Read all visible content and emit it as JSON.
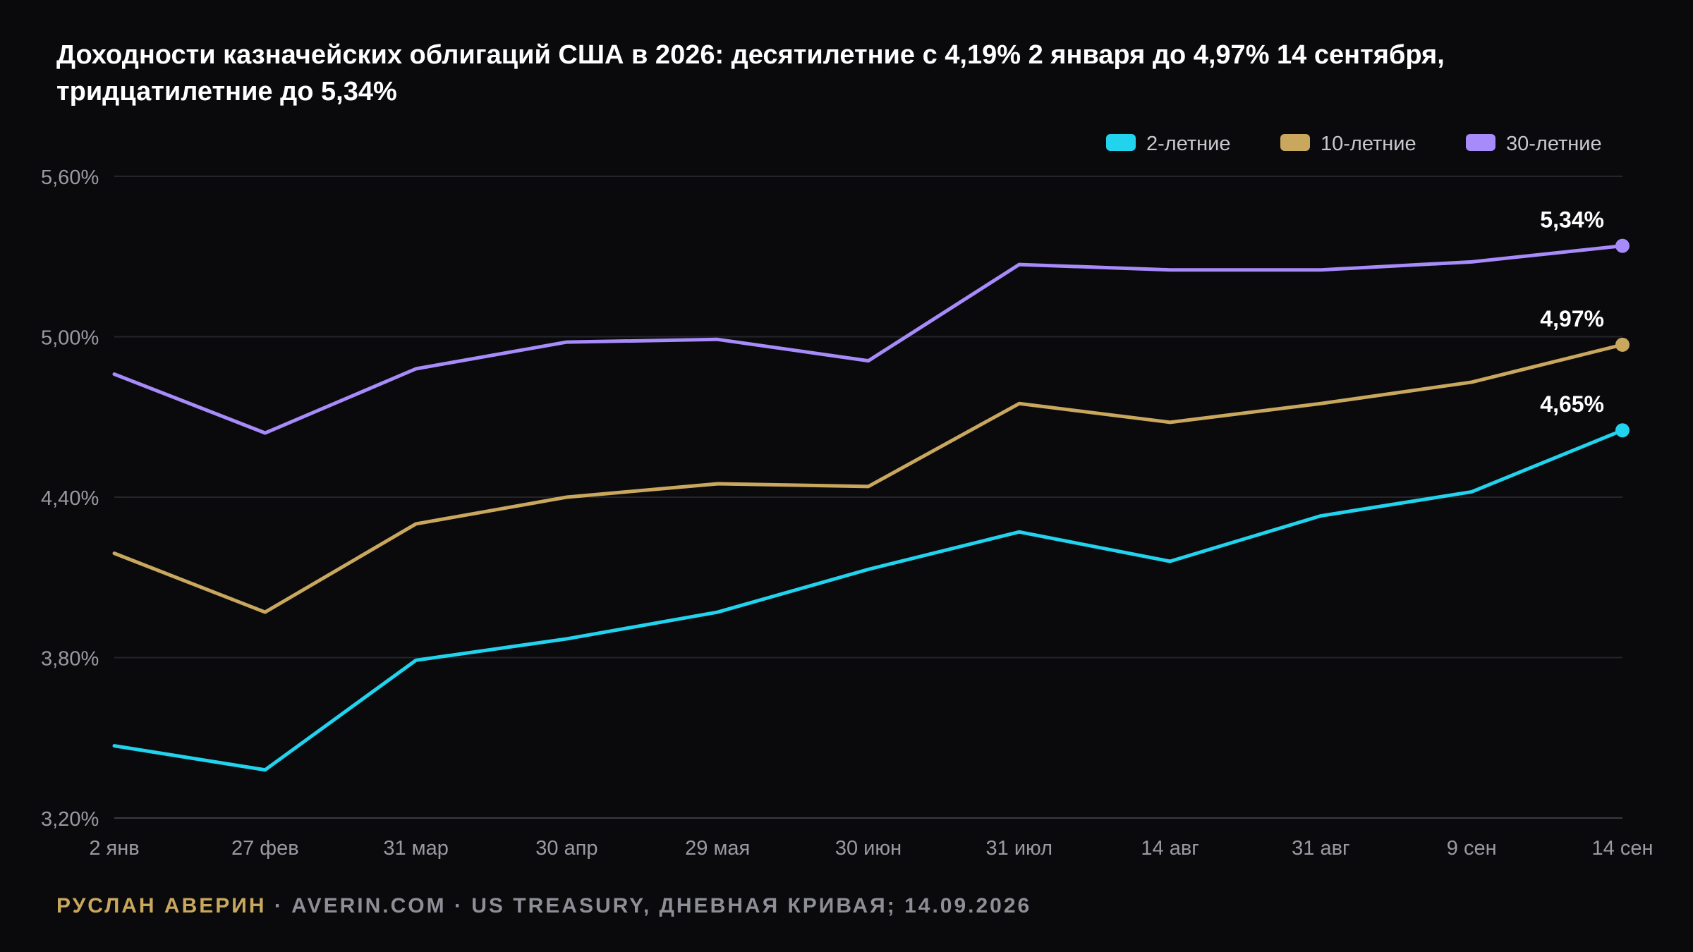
{
  "title": {
    "line1": "Доходности казначейских облигаций США в 2026: десятилетние с 4,19% 2 января до 4,97% 14 сентября,",
    "line2": "тридцатилетние до 5,34%"
  },
  "footer": {
    "author": "РУСЛАН АВЕРИН",
    "source": " · AVERIN.COM · US TREASURY, ДНЕВНАЯ КРИВАЯ; 14.09.2026"
  },
  "colors": {
    "background": "#0a0a0d",
    "grid": "#24242a",
    "tick_text": "#9a9aa2",
    "series_2y": "#22d3ee",
    "series_10y": "#c9a85e",
    "series_30y": "#a78bfa"
  },
  "chart_data": {
    "type": "line",
    "categories": [
      "2 янв",
      "27 фев",
      "31 мар",
      "30 апр",
      "29 мая",
      "30 июн",
      "31 июл",
      "14 авг",
      "31 авг",
      "9 сен",
      "14 сен"
    ],
    "y_ticks": [
      "5,60%",
      "5,00%",
      "4,40%",
      "3,80%",
      "3,20%"
    ],
    "ylim": [
      3.2,
      5.6
    ],
    "grid": true,
    "legend_position": "top-right",
    "series": [
      {
        "name": "2-летние",
        "color": "#22d3ee",
        "values": [
          3.47,
          3.38,
          3.79,
          3.87,
          3.97,
          4.13,
          4.27,
          4.16,
          4.33,
          4.42,
          4.65
        ],
        "end_label": "4,65%"
      },
      {
        "name": "10-летние",
        "color": "#c9a85e",
        "values": [
          4.19,
          3.97,
          4.3,
          4.4,
          4.45,
          4.44,
          4.75,
          4.68,
          4.75,
          4.83,
          4.97
        ],
        "end_label": "4,97%"
      },
      {
        "name": "30-летние",
        "color": "#a78bfa",
        "values": [
          4.86,
          4.64,
          4.88,
          4.98,
          4.99,
          4.91,
          5.27,
          5.25,
          5.25,
          5.28,
          5.34
        ],
        "end_label": "5,34%"
      }
    ]
  }
}
